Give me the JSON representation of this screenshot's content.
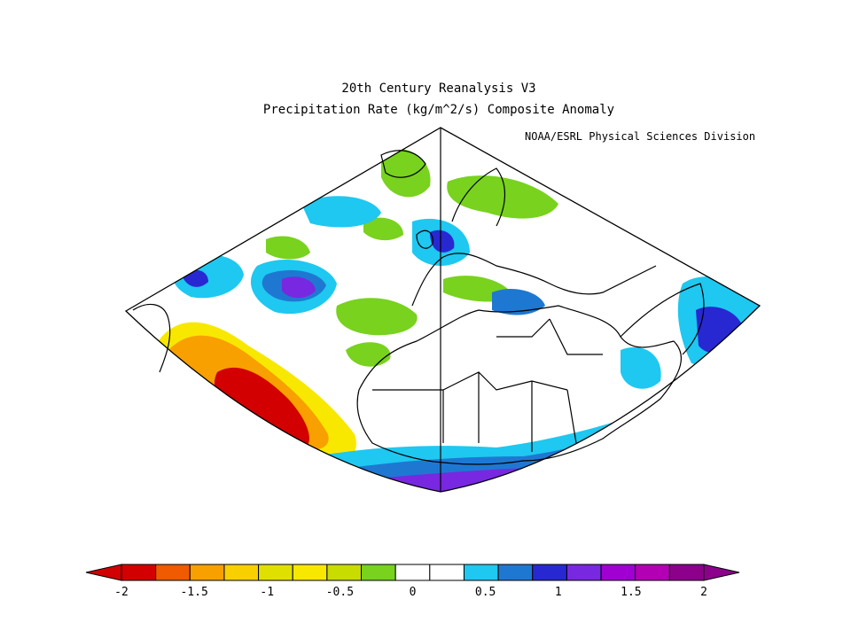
{
  "figure": {
    "title_line1": "20th Century Reanalysis V3",
    "title_line2": "Precipitation Rate (kg/m^2/s) Composite Anomaly",
    "credit": "NOAA/ESRL Physical Sciences Division"
  },
  "colorbar": {
    "colors": [
      "#d20000",
      "#f05a00",
      "#f8a000",
      "#f8d000",
      "#e0e000",
      "#f8e800",
      "#c8dc00",
      "#78d21e",
      "#ffffff",
      "#ffffff",
      "#1ec8f0",
      "#1e78d2",
      "#2828d2",
      "#7828e0",
      "#a000d2",
      "#b400b4",
      "#8c008c"
    ],
    "tick_labels": [
      "-2",
      "-1.5",
      "-1",
      "-0.5",
      "0",
      "0.5",
      "1",
      "1.5",
      "2"
    ],
    "tick_values": [
      -2,
      -1.5,
      -1,
      -0.5,
      0,
      0.5,
      1,
      1.5,
      2
    ],
    "vmin": -2.0,
    "vmax": 2.0
  },
  "map": {
    "projection": "conic sector",
    "region": "North Atlantic, Europe and Africa",
    "land_color": "#ffffff",
    "outline_color": "#000000"
  }
}
